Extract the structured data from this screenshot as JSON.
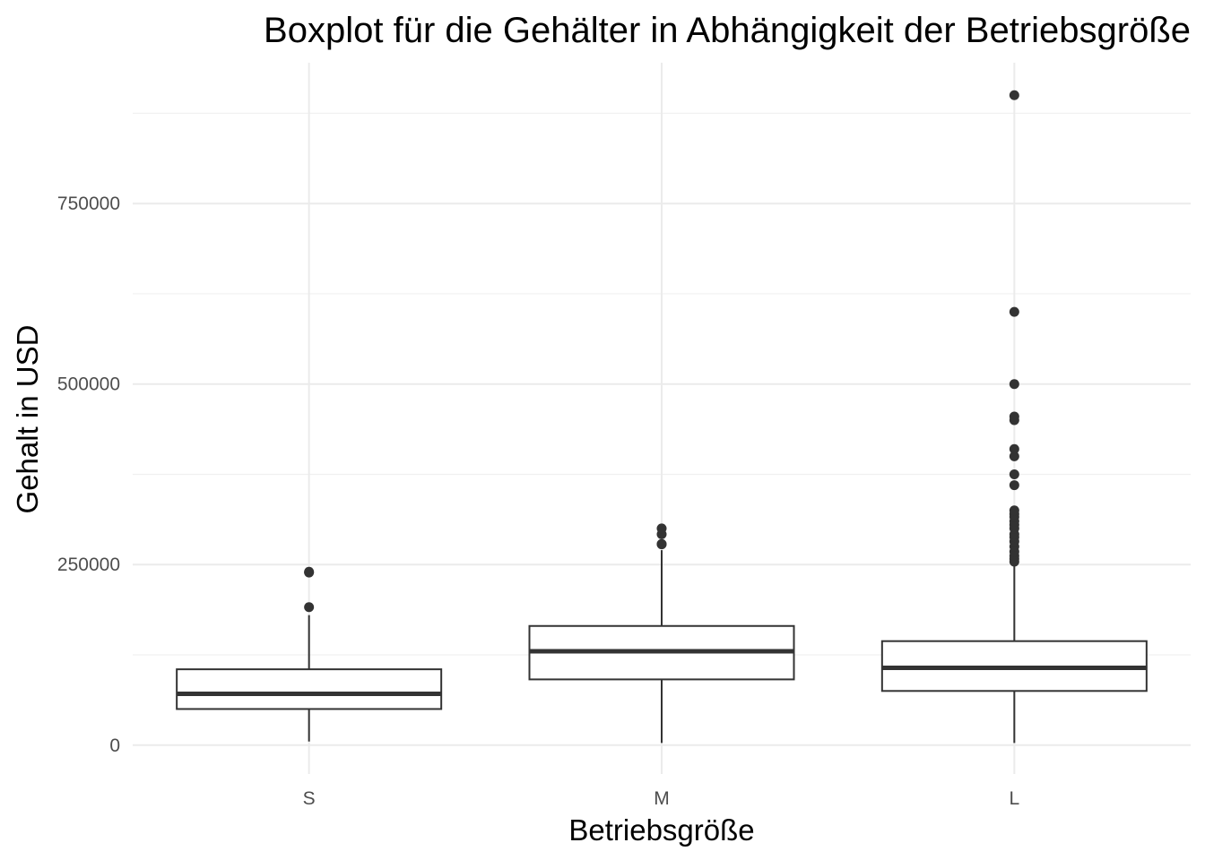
{
  "chart_data": {
    "type": "boxplot",
    "title": "Boxplot für die Gehälter in Abhängigkeit der Betriebsgröße",
    "xlabel": "Betriebsgröße",
    "ylabel": "Gehalt in USD",
    "categories": [
      "S",
      "M",
      "L"
    ],
    "y_ticks": [
      0,
      250000,
      500000,
      750000
    ],
    "y_tick_labels": [
      "0",
      "250000",
      "500000",
      "750000"
    ],
    "ylim": [
      -40000,
      945000
    ],
    "grid": true,
    "boxes": [
      {
        "category": "S",
        "whisker_low": 5000,
        "q1": 50000,
        "median": 71000,
        "q3": 105000,
        "whisker_high": 180000,
        "outliers": [
          191000,
          239000,
          240000
        ]
      },
      {
        "category": "M",
        "whisker_low": 3000,
        "q1": 91000,
        "median": 130000,
        "q3": 165000,
        "whisker_high": 270000,
        "outliers": [
          278000,
          278500,
          292000,
          300000
        ]
      },
      {
        "category": "L",
        "whisker_low": 3000,
        "q1": 75000,
        "median": 107000,
        "q3": 144000,
        "whisker_high": 250000,
        "outliers": [
          254000,
          258000,
          262000,
          268000,
          275000,
          282000,
          288000,
          292000,
          300000,
          305000,
          310000,
          316000,
          320000,
          325000,
          360000,
          375000,
          400000,
          410000,
          450000,
          455000,
          500000,
          600000,
          900000
        ]
      }
    ]
  }
}
